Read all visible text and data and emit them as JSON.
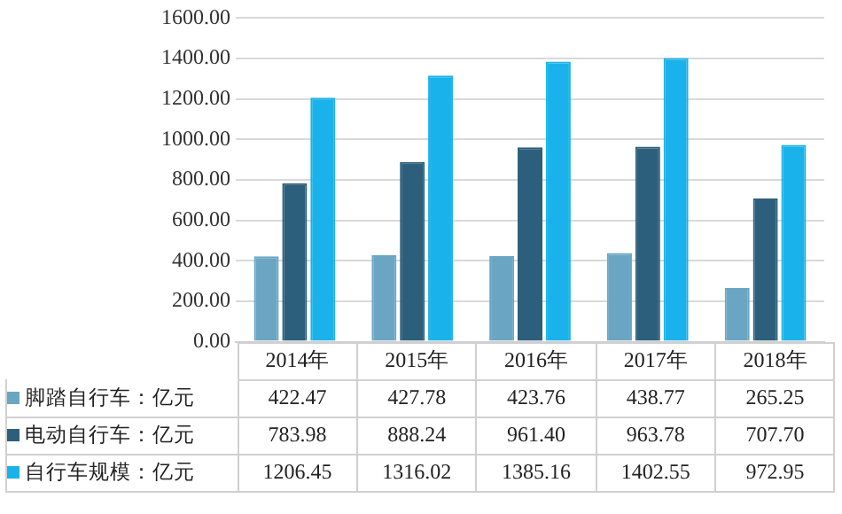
{
  "chart_data": {
    "type": "bar",
    "categories": [
      "2014年",
      "2015年",
      "2016年",
      "2017年",
      "2018年"
    ],
    "series": [
      {
        "name": "脚踏自行车：亿元",
        "color": "#6aa6c4",
        "values": [
          422.47,
          427.78,
          423.76,
          438.77,
          265.25
        ],
        "value_labels": [
          "422.47",
          "427.78",
          "423.76",
          "438.77",
          "265.25"
        ]
      },
      {
        "name": "电动自行车：亿元",
        "color": "#2c5f7c",
        "values": [
          783.98,
          888.24,
          961.4,
          963.78,
          707.7
        ],
        "value_labels": [
          "783.98",
          "888.24",
          "961.40",
          "963.78",
          "707.70"
        ]
      },
      {
        "name": "自行车规模：亿元",
        "color": "#1ab2ea",
        "values": [
          1206.45,
          1316.02,
          1385.16,
          1402.55,
          972.95
        ],
        "value_labels": [
          "1206.45",
          "1316.02",
          "1385.16",
          "1402.55",
          "972.95"
        ]
      }
    ],
    "ylim": [
      0,
      1600
    ],
    "yticks": [
      {
        "value": 0,
        "label": "0.00"
      },
      {
        "value": 200,
        "label": "200.00"
      },
      {
        "value": 400,
        "label": "400.00"
      },
      {
        "value": 600,
        "label": "600.00"
      },
      {
        "value": 800,
        "label": "800.00"
      },
      {
        "value": 1000,
        "label": "1000.00"
      },
      {
        "value": 1200,
        "label": "1200.00"
      },
      {
        "value": 1400,
        "label": "1400.00"
      },
      {
        "value": 1600,
        "label": "1600.00"
      }
    ],
    "grid": "y",
    "legend": "bottom"
  }
}
